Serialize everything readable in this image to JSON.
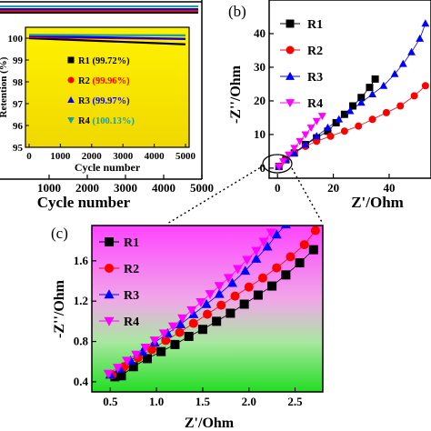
{
  "chart_data": [
    {
      "panel": "",
      "type": "scatter",
      "xlabel": "Cycle number",
      "ylabel": "",
      "xticks": [
        "1000",
        "2000",
        "3000",
        "4000",
        "5000"
      ],
      "xlim": [
        0,
        5000
      ],
      "inset": {
        "type": "line",
        "xlabel": "Cycle number",
        "ylabel": "Retention (%)",
        "xlim": [
          0,
          5000
        ],
        "ylim": [
          95,
          100.5
        ],
        "xticks": [
          "0",
          "1000",
          "2000",
          "3000",
          "4000",
          "5000"
        ],
        "yticks": [
          "95",
          "96",
          "97",
          "98",
          "99",
          "100"
        ],
        "series": [
          {
            "name": "R1",
            "legend": "R1 (99.72%)",
            "values": [
              100,
              99.72
            ],
            "color": "#000000",
            "marker": "square"
          },
          {
            "name": "R2",
            "legend": "R2 (99.96%)",
            "values": [
              100,
              99.96
            ],
            "color": "#ff0000",
            "marker": "circle"
          },
          {
            "name": "R3",
            "legend": "R3 (99.97%)",
            "values": [
              100,
              99.97
            ],
            "color": "#0000ff",
            "marker": "triangle-up"
          },
          {
            "name": "R4",
            "legend": "R4 (100.13%)",
            "values": [
              100,
              100.13
            ],
            "color": "#1a9e9e",
            "marker": "triangle-down"
          }
        ],
        "background": "#f2e600"
      }
    },
    {
      "panel": "(b)",
      "type": "scatter",
      "xlabel": "Z'/Ohm",
      "ylabel": "-Z''/Ohm",
      "xlim": [
        -3,
        55
      ],
      "ylim": [
        -3,
        50
      ],
      "xticks": [
        0,
        20,
        40
      ],
      "yticks": [
        0,
        10,
        20,
        30,
        40
      ],
      "legend": "top-left",
      "series": [
        {
          "name": "R1",
          "color": "#000000",
          "marker": "square",
          "x": [
            0.5,
            3,
            6,
            10,
            14,
            18,
            21,
            24,
            27,
            30,
            33,
            35
          ],
          "y": [
            0.5,
            2.5,
            4.5,
            7,
            9,
            11,
            13.5,
            16,
            18.5,
            21,
            24,
            26.5
          ]
        },
        {
          "name": "R2",
          "color": "#ff0000",
          "marker": "circle",
          "x": [
            0.5,
            3,
            6,
            10,
            14,
            19,
            24,
            29,
            34,
            39,
            44,
            49,
            53
          ],
          "y": [
            0.5,
            2.5,
            4.5,
            6.5,
            8,
            9.5,
            11,
            12.5,
            14.5,
            16.5,
            18.5,
            21.5,
            24.5
          ]
        },
        {
          "name": "R3",
          "color": "#0000ff",
          "marker": "triangle-up",
          "x": [
            0.5,
            3,
            6,
            10,
            14,
            18,
            22,
            26,
            30,
            34,
            38,
            42,
            45,
            48,
            51,
            53
          ],
          "y": [
            0.5,
            2.5,
            4.5,
            7,
            9.5,
            12,
            14.5,
            17,
            19.5,
            22,
            24.5,
            28,
            31,
            34.5,
            38.5,
            43
          ]
        },
        {
          "name": "R4",
          "color": "#ff00ff",
          "marker": "triangle-down",
          "x": [
            0.5,
            2,
            4,
            6,
            8,
            10,
            12,
            14,
            16
          ],
          "y": [
            0.5,
            2,
            4,
            6,
            8,
            10,
            12,
            14,
            15.5
          ]
        }
      ]
    },
    {
      "panel": "(c)",
      "type": "scatter",
      "xlabel": "Z'/Ohm",
      "ylabel": "-Z''/Ohm",
      "xlim": [
        0.3,
        2.8
      ],
      "ylim": [
        0.3,
        1.95
      ],
      "xticks": [
        "0.5",
        "1.0",
        "1.5",
        "2.0",
        "2.5"
      ],
      "yticks": [
        "0.4",
        "0.8",
        "1.2",
        "1.6"
      ],
      "legend": "top-left",
      "series": [
        {
          "name": "R1",
          "color": "#000000",
          "marker": "square",
          "x": [
            0.55,
            0.62,
            0.75,
            0.9,
            1.05,
            1.2,
            1.35,
            1.5,
            1.65,
            1.8,
            1.95,
            2.1,
            2.25,
            2.4,
            2.55,
            2.7
          ],
          "y": [
            0.45,
            0.46,
            0.55,
            0.63,
            0.7,
            0.77,
            0.85,
            0.92,
            1.0,
            1.08,
            1.17,
            1.26,
            1.35,
            1.46,
            1.58,
            1.71
          ]
        },
        {
          "name": "R2",
          "color": "#ff0000",
          "marker": "circle",
          "x": [
            0.52,
            0.65,
            0.8,
            0.95,
            1.1,
            1.25,
            1.4,
            1.55,
            1.7,
            1.85,
            2.0,
            2.15,
            2.3,
            2.45,
            2.6,
            2.72
          ],
          "y": [
            0.47,
            0.55,
            0.64,
            0.72,
            0.81,
            0.89,
            0.98,
            1.07,
            1.16,
            1.25,
            1.34,
            1.43,
            1.53,
            1.64,
            1.76,
            1.9
          ]
        },
        {
          "name": "R3",
          "color": "#0000ff",
          "marker": "triangle-up",
          "x": [
            0.5,
            0.6,
            0.72,
            0.85,
            0.98,
            1.12,
            1.26,
            1.4,
            1.54,
            1.68,
            1.82,
            1.96,
            2.08,
            2.2,
            2.3,
            2.4
          ],
          "y": [
            0.47,
            0.53,
            0.61,
            0.7,
            0.79,
            0.88,
            0.97,
            1.07,
            1.17,
            1.27,
            1.38,
            1.5,
            1.62,
            1.74,
            1.86,
            1.96
          ]
        },
        {
          "name": "R4",
          "color": "#ff00ff",
          "marker": "triangle-down",
          "x": [
            0.48,
            0.58,
            0.68,
            0.78,
            0.88,
            0.98,
            1.08,
            1.18,
            1.28,
            1.38,
            1.48,
            1.58,
            1.68,
            1.78,
            1.88,
            1.98,
            2.08,
            2.16,
            2.24
          ],
          "y": [
            0.48,
            0.54,
            0.61,
            0.67,
            0.74,
            0.81,
            0.88,
            0.95,
            1.03,
            1.11,
            1.19,
            1.27,
            1.35,
            1.43,
            1.52,
            1.61,
            1.7,
            1.79,
            1.88
          ]
        }
      ],
      "background_gradient": [
        "#ff66ff",
        "#33dd33"
      ]
    }
  ]
}
